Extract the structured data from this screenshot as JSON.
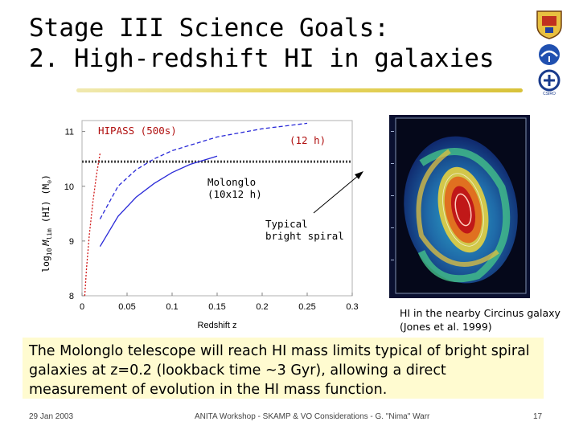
{
  "slide": {
    "title_line1": "Stage III Science Goals:",
    "title_line2": "2. High-redshift HI in galaxies"
  },
  "chart_data": {
    "type": "line",
    "xlabel": "Redshift z",
    "ylabel": "log10 Mlim (HI) (M⊙)",
    "ylabel_parts": {
      "log": "log",
      "sub10": "10",
      "m": "M",
      "lim": "lim",
      "rest": " (HI) (M",
      "sun": "⊙",
      "close": ")"
    },
    "xlim": [
      0,
      0.3
    ],
    "ylim": [
      8,
      11.2
    ],
    "xticks": [
      0,
      0.05,
      0.1,
      0.15,
      0.2,
      0.25,
      0.3
    ],
    "xtick_labels": [
      "0",
      "0.05",
      "0.1",
      "0.15",
      "0.2",
      "0.25",
      "0.3"
    ],
    "yticks": [
      8,
      9,
      10,
      11
    ],
    "ytick_labels": [
      "8",
      "9",
      "10",
      "11"
    ],
    "typical_spiral_level": 10.45,
    "series": [
      {
        "name": "HIPASS (500s)",
        "color": "#d01818",
        "style": "dotted",
        "x": [
          0.003,
          0.005,
          0.008,
          0.012,
          0.016,
          0.02
        ],
        "y": [
          8.0,
          8.5,
          9.1,
          9.7,
          10.2,
          10.6
        ]
      },
      {
        "name": "(12 h)",
        "color": "#2a2ad8",
        "style": "dashed",
        "x": [
          0.02,
          0.04,
          0.06,
          0.08,
          0.1,
          0.15,
          0.2,
          0.25
        ],
        "y": [
          9.4,
          10.0,
          10.3,
          10.5,
          10.65,
          10.9,
          11.05,
          11.15
        ]
      },
      {
        "name": "Molonglo (10x12 h)",
        "color": "#2a2ad8",
        "style": "solid",
        "x": [
          0.02,
          0.04,
          0.06,
          0.08,
          0.1,
          0.12,
          0.15
        ],
        "y": [
          8.9,
          9.45,
          9.8,
          10.05,
          10.25,
          10.4,
          10.55
        ]
      }
    ],
    "annotations": {
      "hipass": "HIPASS (500s)",
      "h12": "(12 h)",
      "molonglo_line1": "Molonglo",
      "molonglo_line2": "(10x12 h)",
      "spiral_line1": "Typical",
      "spiral_line2": "bright spiral"
    }
  },
  "galaxy_caption": "HI in the nearby Circinus galaxy (Jones et al. 1999)",
  "summary": "The Molonglo telescope will reach HI mass limits typical of bright spiral galaxies at z=0.2 (lookback time ~3 Gyr), allowing a direct measurement of evolution in the HI mass function.",
  "footer": {
    "date": "29 Jan 2003",
    "center": "ANITA Workshop - SKAMP & VO Considerations - G. \"Nima\" Warr",
    "page": "17"
  },
  "logos": {
    "bottom_label": "CSIRO"
  },
  "colors": {
    "hipass": "#d01818",
    "molonglo": "#2a2ad8",
    "highlight": "#fffbd0"
  }
}
